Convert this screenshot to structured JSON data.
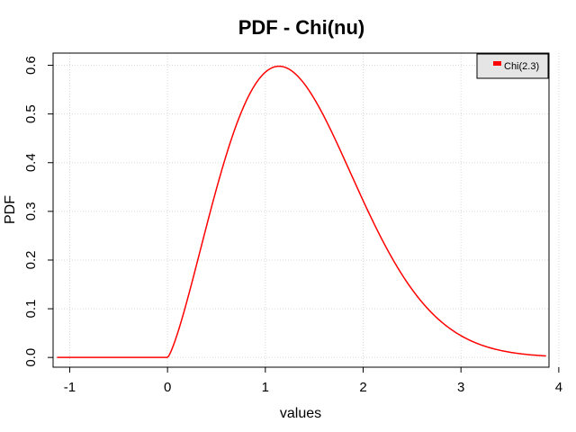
{
  "chart_data": {
    "type": "line",
    "title": "PDF - Chi(nu)",
    "xlabel": "values",
    "ylabel": "PDF",
    "xlim": [
      -1.17,
      3.9
    ],
    "ylim": [
      -0.02,
      0.625
    ],
    "xticks": [
      -1,
      0,
      1,
      2,
      3,
      4
    ],
    "yticks": [
      0.0,
      0.1,
      0.2,
      0.3,
      0.4,
      0.5,
      0.6
    ],
    "ytick_labels": [
      "0.0",
      "0.1",
      "0.2",
      "0.3",
      "0.4",
      "0.5",
      "0.6"
    ],
    "grid": true,
    "legend_position": "top-right",
    "series": [
      {
        "name": "Chi(2.3)",
        "color": "#ff0000",
        "distribution": "chi",
        "nu": 2.3,
        "x_range": [
          -1.13,
          3.87
        ]
      }
    ]
  }
}
